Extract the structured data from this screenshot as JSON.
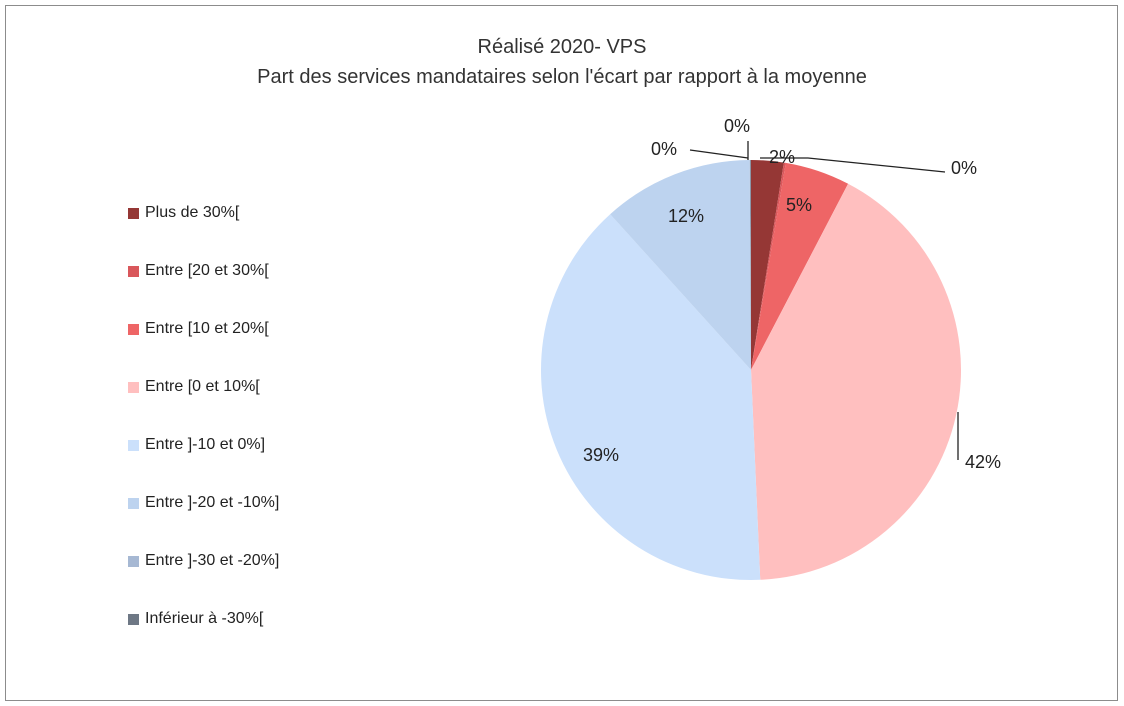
{
  "chart_data": {
    "type": "pie",
    "title": "Réalisé 2020- VPS",
    "subtitle": "Part des services mandataires selon l'écart par rapport à la moyenne",
    "legend_position": "left",
    "slices": [
      {
        "label": "Plus de 30%[",
        "value": 2.5,
        "display": "2%",
        "color": "#953735"
      },
      {
        "label": "Entre [20 et 30%[",
        "value": 0.15,
        "display": "0%",
        "color": "#d9575b"
      },
      {
        "label": "Entre [10 et 20%[",
        "value": 5,
        "display": "5%",
        "color": "#ee6566"
      },
      {
        "label": "Entre [0 et 10%[",
        "value": 41.65,
        "display": "42%",
        "color": "#ffbfbf"
      },
      {
        "label": "Entre ]-10 et 0%]",
        "value": 39,
        "display": "39%",
        "color": "#cbe0fb"
      },
      {
        "label": "Entre ]-20 et -10%]",
        "value": 11.6,
        "display": "12%",
        "color": "#bdd3ef"
      },
      {
        "label": "Entre ]-30 et -20%]",
        "value": 0.05,
        "display": "0%",
        "color": "#a6b8d3"
      },
      {
        "label": "Inférieur à -30%[",
        "value": 0.05,
        "display": "0%",
        "color": "#6e7885"
      }
    ]
  }
}
